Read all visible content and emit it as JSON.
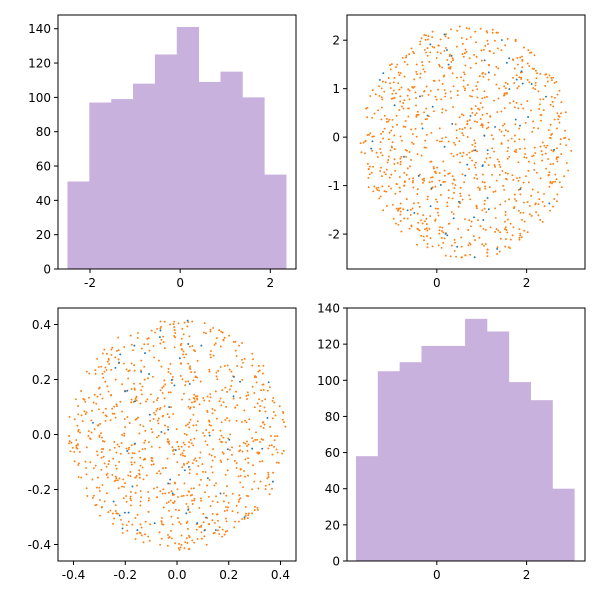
{
  "chart_data": [
    {
      "id": "top-left",
      "type": "bar",
      "style": "histogram",
      "color": "#c8b1dd",
      "xlim": [
        -2.71,
        2.57
      ],
      "ylim": [
        0,
        148
      ],
      "xticks": [
        -2,
        0,
        2
      ],
      "yticks": [
        0,
        20,
        40,
        60,
        80,
        100,
        120,
        140
      ],
      "bin_edges": [
        -2.5,
        -2.015,
        -1.53,
        -1.045,
        -0.56,
        -0.075,
        0.41,
        0.895,
        1.38,
        1.865,
        2.35
      ],
      "values": [
        51,
        97,
        99,
        108,
        125,
        141,
        109,
        115,
        100,
        55
      ],
      "grid": false,
      "title": "",
      "xlabel": "",
      "ylabel": ""
    },
    {
      "id": "top-right",
      "type": "scatter",
      "xlim": [
        -2.0,
        3.3
      ],
      "ylim": [
        -2.72,
        2.52
      ],
      "xticks": [
        0,
        2
      ],
      "yticks": [
        -2,
        -1,
        0,
        1,
        2
      ],
      "distribution": "points scattered uniformly inside an ellipse",
      "center": [
        0.65,
        -0.1
      ],
      "radii": [
        2.35,
        2.42
      ],
      "series": [
        {
          "color": "#ff7f0e",
          "count": 940
        },
        {
          "color": "#1f77b4",
          "count": 60
        }
      ],
      "grid": false,
      "title": "",
      "xlabel": "",
      "ylabel": ""
    },
    {
      "id": "bottom-left",
      "type": "scatter",
      "xlim": [
        -0.46,
        0.46
      ],
      "ylim": [
        -0.46,
        0.46
      ],
      "xticks": [
        -0.4,
        -0.2,
        0.0,
        0.2,
        0.4
      ],
      "yticks": [
        -0.4,
        -0.2,
        0.0,
        0.2,
        0.4
      ],
      "distribution": "points scattered uniformly inside a circle",
      "center": [
        0,
        0
      ],
      "radii": [
        0.42,
        0.42
      ],
      "series": [
        {
          "color": "#ff7f0e",
          "count": 940
        },
        {
          "color": "#1f77b4",
          "count": 60
        }
      ],
      "grid": false,
      "title": "",
      "xlabel": "",
      "ylabel": ""
    },
    {
      "id": "bottom-right",
      "type": "bar",
      "style": "histogram",
      "color": "#c8b1dd",
      "xlim": [
        -2.0,
        3.3
      ],
      "ylim": [
        0,
        140
      ],
      "xticks": [
        0,
        2
      ],
      "yticks": [
        0,
        20,
        40,
        60,
        80,
        100,
        120,
        140
      ],
      "bin_edges": [
        -1.8,
        -1.314,
        -0.828,
        -0.342,
        0.144,
        0.63,
        1.116,
        1.602,
        2.088,
        2.574,
        3.06
      ],
      "values": [
        58,
        105,
        110,
        119,
        119,
        134,
        127,
        99,
        89,
        40
      ],
      "grid": false,
      "title": "",
      "xlabel": "",
      "ylabel": ""
    }
  ]
}
